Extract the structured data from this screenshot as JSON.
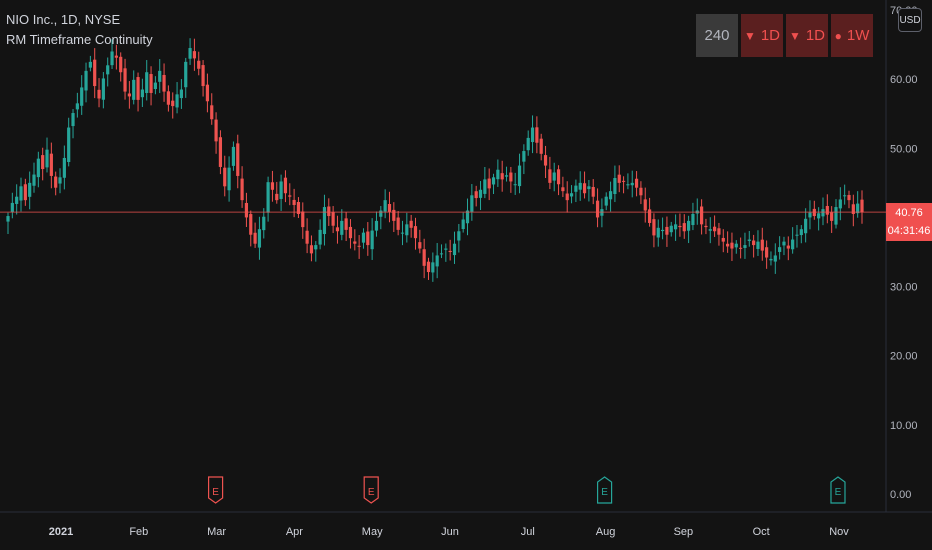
{
  "legend": {
    "symbol_line": "NIO Inc., 1D, NYSE",
    "indicator_name": "RM Timeframe Continuity"
  },
  "timeframes": [
    {
      "label": "240",
      "glyph": "",
      "state": "neutral"
    },
    {
      "label": "1D",
      "glyph": "▼",
      "state": "down"
    },
    {
      "label": "1D",
      "glyph": "▼",
      "state": "down"
    },
    {
      "label": "1W",
      "glyph": "●",
      "state": "down"
    }
  ],
  "price_scale": {
    "currency": "USD",
    "ticks": [
      "70.00",
      "60.00",
      "50.00",
      "40.00",
      "30.00",
      "20.00",
      "10.00",
      "0.00"
    ]
  },
  "last_price": {
    "value": "40.76",
    "countdown": "04:31:46"
  },
  "colors": {
    "background": "#131313",
    "up": "#26a69a",
    "down": "#ef5350",
    "price_line": "#ef5350"
  },
  "chart_data": {
    "type": "candlestick",
    "ylim": [
      0,
      70
    ],
    "y_ticks": [
      0,
      10,
      20,
      30,
      40,
      50,
      60,
      70
    ],
    "x_labels": [
      "2021",
      "Feb",
      "Mar",
      "Apr",
      "May",
      "Jun",
      "Jul",
      "Aug",
      "Sep",
      "Oct",
      "Nov"
    ],
    "earnings_markers": [
      {
        "label": "E",
        "month": "Mar",
        "sentiment": "negative"
      },
      {
        "label": "E",
        "month": "May",
        "sentiment": "negative"
      },
      {
        "label": "E",
        "month": "Aug",
        "sentiment": "positive"
      },
      {
        "label": "E",
        "month": "Nov",
        "sentiment": "positive"
      }
    ],
    "closes": [
      40.2,
      42.1,
      43.0,
      44.5,
      42.5,
      45.0,
      46.2,
      48.5,
      47.0,
      49.8,
      46.0,
      44.3,
      45.8,
      48.6,
      53.0,
      55.1,
      56.5,
      58.8,
      61.2,
      62.5,
      59.0,
      57.2,
      60.1,
      62.0,
      64.0,
      63.1,
      61.0,
      58.2,
      57.5,
      59.9,
      57.0,
      58.5,
      61.0,
      58.0,
      59.5,
      61.2,
      58.2,
      56.3,
      56.1,
      57.8,
      58.5,
      62.5,
      64.5,
      63.0,
      61.5,
      59.0,
      56.8,
      54.2,
      51.0,
      47.3,
      44.5,
      47.2,
      50.2,
      46.0,
      42.5,
      40.0,
      37.5,
      36.2,
      38.3,
      40.1,
      45.1,
      44.0,
      42.5,
      45.2,
      43.5,
      43.0,
      41.8,
      40.5,
      38.6,
      36.2,
      34.8,
      36.0,
      38.2,
      41.5,
      40.2,
      38.8,
      38.0,
      39.5,
      38.2,
      37.0,
      36.2,
      35.8,
      37.8,
      36.0,
      38.1,
      39.5,
      41.0,
      42.5,
      40.8,
      39.5,
      38.2,
      37.8,
      39.0,
      38.5,
      37.0,
      35.5,
      33.0,
      32.1,
      33.5,
      34.5,
      34.8,
      35.5,
      35.0,
      36.2,
      38.0,
      39.7,
      41.0,
      43.2,
      42.8,
      44.0,
      45.5,
      44.2,
      45.8,
      46.9,
      45.5,
      46.1,
      45.2,
      44.8,
      47.5,
      49.6,
      51.5,
      53.0,
      50.8,
      49.2,
      47.5,
      45.0,
      46.5,
      44.8,
      43.8,
      42.5,
      43.5,
      44.6,
      45.0,
      43.5,
      44.5,
      43.0,
      40.0,
      41.2,
      43.0,
      43.8,
      45.7,
      45.0,
      45.2,
      44.8,
      45.0,
      44.3,
      43.2,
      41.0,
      39.2,
      37.4,
      38.5,
      38.2,
      37.5,
      38.8,
      39.0,
      38.6,
      38.0,
      39.5,
      40.5,
      41.0,
      39.0,
      38.6,
      38.3,
      38.0,
      37.5,
      36.5,
      35.8,
      35.5,
      36.2,
      35.6,
      36.0,
      36.8,
      36.0,
      36.5,
      35.2,
      34.2,
      34.0,
      34.5,
      35.7,
      36.5,
      35.5,
      36.8,
      37.5,
      38.3,
      39.8,
      40.7,
      40.2,
      40.6,
      41.2,
      40.4,
      39.5,
      41.5,
      42.6,
      43.2,
      42.5,
      40.5,
      42.0,
      40.76
    ]
  }
}
